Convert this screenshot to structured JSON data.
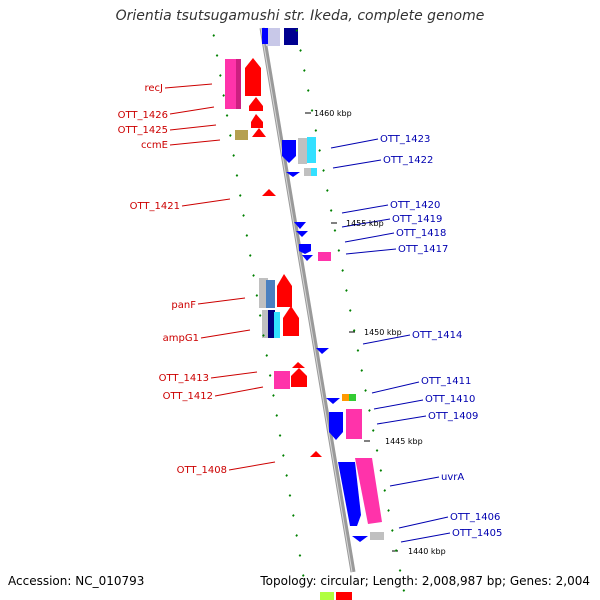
{
  "title": "Orientia tsutsugamushi str. Ikeda, complete genome",
  "footer": {
    "accession": "Accession: NC_010793",
    "summary": "Topology: circular; Length: 2,008,987 bp; Genes: 2,004"
  },
  "scale_labels": [
    "1460 kbp",
    "1455 kbp",
    "1450 kbp",
    "1445 kbp",
    "1440 kbp"
  ],
  "left_labels": [
    "recJ",
    "OTT_1426",
    "OTT_1425",
    "ccmE",
    "OTT_1421",
    "panF",
    "ampG1",
    "OTT_1413",
    "OTT_1412",
    "OTT_1408"
  ],
  "right_labels": [
    "OTT_1423",
    "OTT_1422",
    "OTT_1420",
    "OTT_1419",
    "OTT_1418",
    "OTT_1417",
    "OTT_1414",
    "OTT_1411",
    "OTT_1410",
    "OTT_1409",
    "uvrA",
    "OTT_1406",
    "OTT_1405"
  ],
  "colors": {
    "forward": "#ff0000",
    "reverse": "#0000ff",
    "pink": "#ff33aa",
    "cyan": "#33e0ff",
    "grey": "#c0c0c0",
    "olive": "#b5a050",
    "backbone": "#999999",
    "tick": "#008000",
    "label_left": "#cc0000",
    "label_right": "#0000b0"
  }
}
